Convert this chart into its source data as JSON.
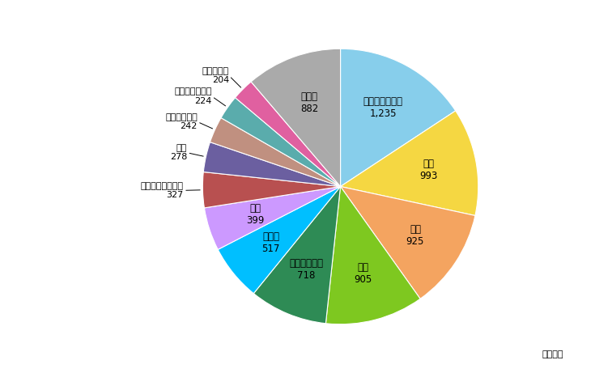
{
  "labels": [
    "オーストラリア",
    "中国",
    "日本",
    "韓国",
    "インドネシア",
    "インド",
    "香港",
    "ニュージーランド",
    "タイ",
    "シンガポール",
    "バングラデシュ",
    "フィリピン",
    "その他"
  ],
  "values": [
    1235,
    993,
    925,
    905,
    718,
    517,
    399,
    327,
    278,
    242,
    224,
    204,
    882
  ],
  "colors": [
    "#87CEEB",
    "#F5D742",
    "#F4A460",
    "#7EC820",
    "#2E8B55",
    "#00BFFF",
    "#CC99FF",
    "#B85050",
    "#6B5FA0",
    "#C09080",
    "#5AACAC",
    "#E060A0",
    "#AAAAAA"
  ],
  "inside_labels": [
    "オーストラリア",
    "中国",
    "日本",
    "韓国",
    "インドネシア",
    "インド",
    "香港",
    "その他"
  ],
  "outside_labels": [
    "ニュージーランド",
    "タイ",
    "シンガポール",
    "バングラデシュ",
    "フィリピン"
  ],
  "note": "単位：個",
  "startangle": 90,
  "figsize": [
    7.56,
    4.61
  ],
  "dpi": 100
}
